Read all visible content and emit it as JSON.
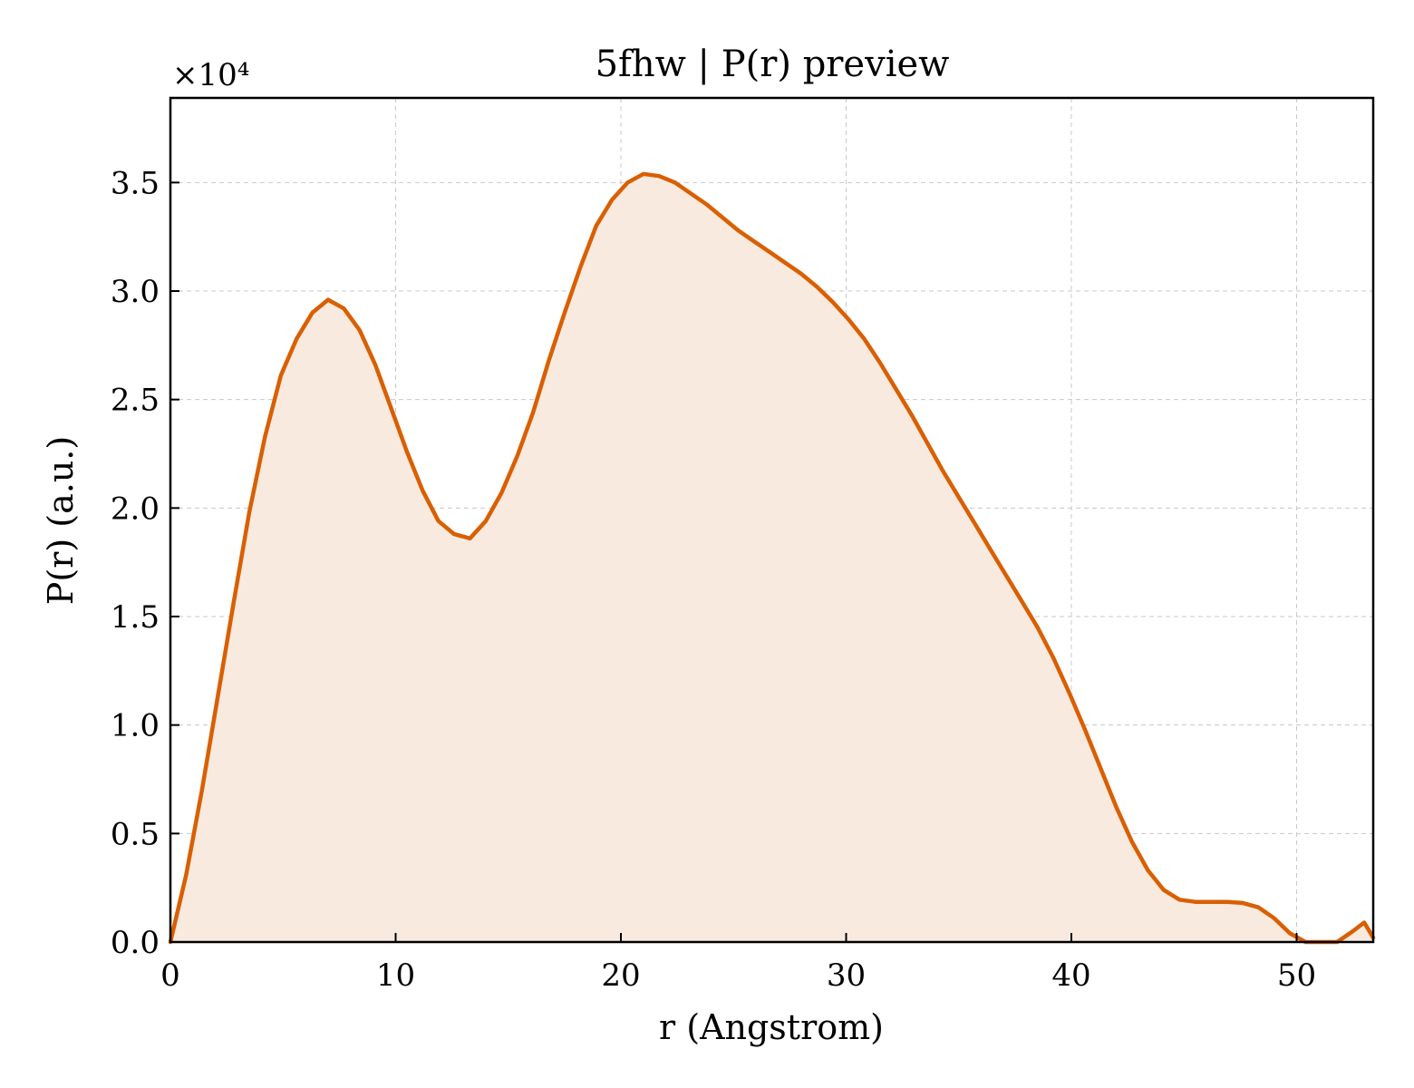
{
  "chart_data": {
    "type": "area",
    "title": "5fhw | P(r) preview",
    "xlabel": "r (Angstrom)",
    "ylabel": "P(r) (a.u.)",
    "y_multiplier_label": "×10⁴",
    "y_scale": 10000,
    "xlim": [
      0,
      53.4
    ],
    "ylim": [
      0,
      38900
    ],
    "xticks": [
      0,
      10,
      20,
      30,
      40,
      50
    ],
    "xtick_labels": [
      "0",
      "10",
      "20",
      "30",
      "40",
      "50"
    ],
    "yticks": [
      0,
      5000,
      10000,
      15000,
      20000,
      25000,
      30000,
      35000
    ],
    "ytick_labels": [
      "0.0",
      "0.5",
      "1.0",
      "1.5",
      "2.0",
      "2.5",
      "3.0",
      "3.5"
    ],
    "grid": true,
    "line_color": "#d95f02",
    "fill_color": "#f9eadf",
    "series": [
      {
        "x": [
          0,
          0.7,
          1.4,
          2.1,
          2.8,
          3.5,
          4.2,
          4.9,
          5.6,
          6.3,
          7.0,
          7.7,
          8.4,
          9.1,
          9.8,
          10.5,
          11.2,
          11.9,
          12.6,
          13.3,
          14.0,
          14.7,
          15.4,
          16.1,
          16.8,
          17.5,
          18.2,
          18.9,
          19.6,
          20.3,
          21.0,
          21.7,
          22.4,
          23.1,
          23.8,
          24.5,
          25.2,
          25.9,
          26.6,
          27.3,
          28.0,
          28.7,
          29.4,
          30.1,
          30.8,
          31.5,
          32.2,
          32.9,
          33.6,
          34.3,
          35.0,
          35.7,
          36.4,
          37.1,
          37.8,
          38.5,
          39.2,
          39.9,
          40.6,
          41.3,
          42.0,
          42.7,
          43.4,
          44.1,
          44.8,
          45.5,
          46.2,
          46.9,
          47.6,
          48.3,
          49.0,
          49.7,
          50.4,
          51.1,
          51.8,
          52.5,
          53.0,
          53.4
        ],
        "y": [
          0,
          3100,
          7000,
          11300,
          15600,
          19800,
          23300,
          26100,
          27800,
          29000,
          29600,
          29200,
          28200,
          26600,
          24600,
          22600,
          20800,
          19400,
          18800,
          18600,
          19400,
          20700,
          22400,
          24400,
          26800,
          29000,
          31100,
          33000,
          34200,
          35000,
          35400,
          35300,
          35000,
          34500,
          34000,
          33400,
          32800,
          32300,
          31800,
          31300,
          30800,
          30200,
          29500,
          28700,
          27800,
          26700,
          25500,
          24300,
          23000,
          21700,
          20500,
          19300,
          18100,
          16900,
          15700,
          14500,
          13100,
          11500,
          9800,
          8000,
          6200,
          4600,
          3300,
          2400,
          1950,
          1850,
          1850,
          1850,
          1800,
          1600,
          1100,
          400,
          0,
          0,
          0,
          500,
          900,
          200
        ]
      }
    ]
  }
}
